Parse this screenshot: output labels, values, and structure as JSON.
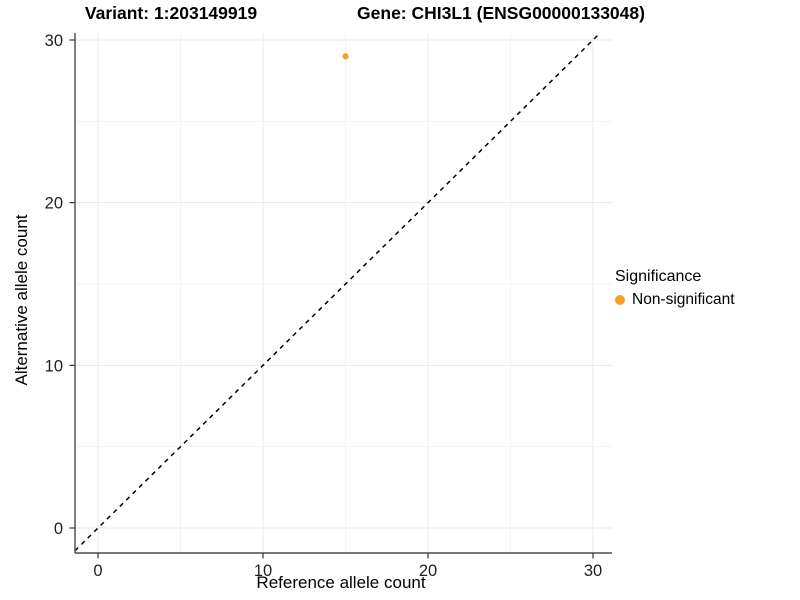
{
  "chart_data": {
    "type": "scatter",
    "title_left": "Variant: 1:203149919",
    "title_right": "Gene: CHI3L1 (ENSG00000133048)",
    "xlabel": "Reference allele count",
    "ylabel": "Alternative allele count",
    "xticks": [
      0,
      10,
      20,
      30
    ],
    "yticks": [
      0,
      10,
      20,
      30
    ],
    "minor_xticks": [
      5,
      15,
      25
    ],
    "minor_yticks": [
      5,
      15,
      25
    ],
    "xlim": [
      -1.4,
      31.2
    ],
    "ylim": [
      -1.5,
      30.4
    ],
    "grid": "major+minor",
    "background": "#FFFFFF",
    "reference_line": {
      "type": "identity y=x",
      "style": "dashed",
      "color": "#000000"
    },
    "series": [
      {
        "name": "Non-significant",
        "color": "#F9A02B",
        "points": [
          {
            "x": 15,
            "y": 29
          }
        ]
      }
    ],
    "legend": {
      "title": "Significance",
      "position": "right",
      "items": [
        {
          "label": "Non-significant",
          "color": "#F9A02B",
          "marker": "circle"
        }
      ]
    }
  },
  "colors": {
    "axis_line": "#4A4A4A",
    "tick_mark": "#333333",
    "tick_label": "#1F1F1F",
    "grid_major": "#E9E9E9",
    "grid_minor": "#F4F4F4"
  }
}
